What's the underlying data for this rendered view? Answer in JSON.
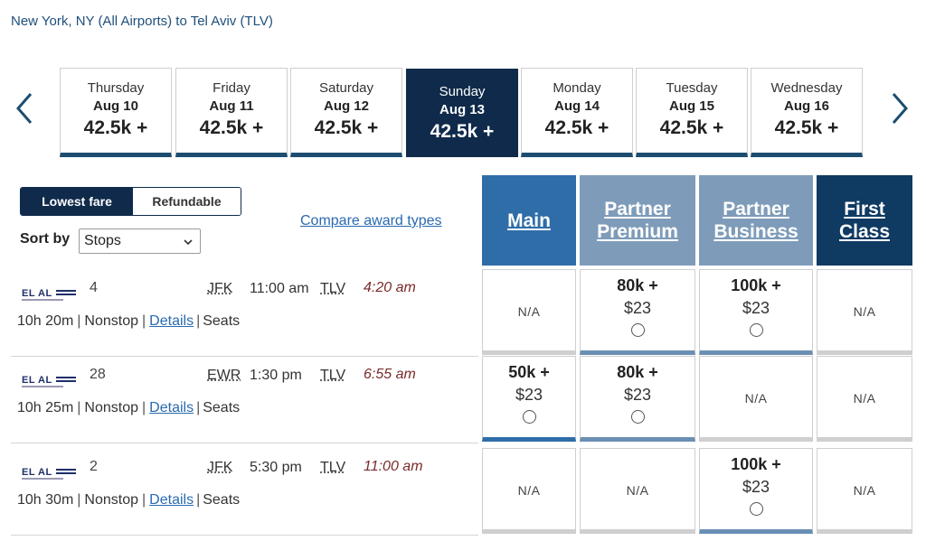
{
  "route": "New York, NY (All Airports) to Tel Aviv (TLV)",
  "dates": [
    {
      "dow": "Thursday",
      "md": "Aug 10",
      "pts": "42.5k +",
      "selected": false
    },
    {
      "dow": "Friday",
      "md": "Aug 11",
      "pts": "42.5k +",
      "selected": false
    },
    {
      "dow": "Saturday",
      "md": "Aug 12",
      "pts": "42.5k +",
      "selected": false
    },
    {
      "dow": "Sunday",
      "md": "Aug 13",
      "pts": "42.5k +",
      "selected": true
    },
    {
      "dow": "Monday",
      "md": "Aug 14",
      "pts": "42.5k +",
      "selected": false
    },
    {
      "dow": "Tuesday",
      "md": "Aug 15",
      "pts": "42.5k +",
      "selected": false
    },
    {
      "dow": "Wednesday",
      "md": "Aug 16",
      "pts": "42.5k +",
      "selected": false
    }
  ],
  "fare_toggle": {
    "lowest": "Lowest fare",
    "refundable": "Refundable"
  },
  "sort": {
    "label": "Sort by",
    "value": "Stops"
  },
  "compare_link": "Compare award types",
  "cabins": {
    "main": "Main",
    "partner_premium": "Partner Premium",
    "partner_business": "Partner Business",
    "first": "First Class"
  },
  "flights": [
    {
      "flight_num": "4",
      "dep_airport": "JFK",
      "dep_time": "11:00 am",
      "arr_airport": "TLV",
      "arr_time": "4:20 am",
      "duration": "10h 20m",
      "stops": "Nonstop",
      "details": "Details",
      "seats": "Seats",
      "fares": {
        "main": {
          "available": false,
          "text": "N/A"
        },
        "partner_premium": {
          "available": true,
          "miles": "80k +",
          "tax": "$23"
        },
        "partner_business": {
          "available": true,
          "miles": "100k +",
          "tax": "$23"
        },
        "first": {
          "available": false,
          "text": "N/A"
        }
      }
    },
    {
      "flight_num": "28",
      "dep_airport": "EWR",
      "dep_time": "1:30 pm",
      "arr_airport": "TLV",
      "arr_time": "6:55 am",
      "duration": "10h 25m",
      "stops": "Nonstop",
      "details": "Details",
      "seats": "Seats",
      "fares": {
        "main": {
          "available": true,
          "miles": "50k +",
          "tax": "$23"
        },
        "partner_premium": {
          "available": true,
          "miles": "80k +",
          "tax": "$23"
        },
        "partner_business": {
          "available": false,
          "text": "N/A"
        },
        "first": {
          "available": false,
          "text": "N/A"
        }
      }
    },
    {
      "flight_num": "2",
      "dep_airport": "JFK",
      "dep_time": "5:30 pm",
      "arr_airport": "TLV",
      "arr_time": "11:00 am",
      "duration": "10h 30m",
      "stops": "Nonstop",
      "details": "Details",
      "seats": "Seats",
      "fares": {
        "main": {
          "available": false,
          "text": "N/A"
        },
        "partner_premium": {
          "available": false,
          "text": "N/A"
        },
        "partner_business": {
          "available": true,
          "miles": "100k +",
          "tax": "$23"
        },
        "first": {
          "available": false,
          "text": "N/A"
        }
      }
    }
  ],
  "icons": {
    "prev": "chevron-left-icon",
    "next": "chevron-right-icon",
    "airline": "el-al-logo",
    "select": "chevron-down-icon"
  },
  "colors": {
    "navy": "#0f2a4a",
    "main_blue": "#2f6da8",
    "partner_blue": "#7e9cb9",
    "first_blue": "#0f3a62",
    "link": "#2a6ab0",
    "arrival": "#7a2a2a"
  }
}
